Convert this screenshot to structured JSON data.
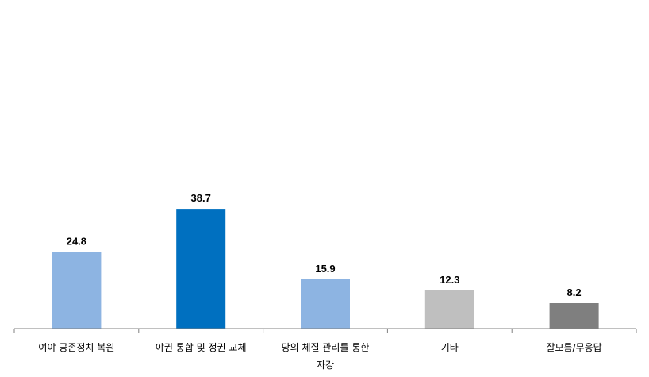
{
  "chart_data": {
    "type": "bar",
    "categories": [
      [
        "여야 공존정치 복원"
      ],
      [
        "야권 통합 및 정권 교체"
      ],
      [
        "당의 체질 관리를 통한",
        "자강"
      ],
      [
        "기타"
      ],
      [
        "잘모름/무응답"
      ]
    ],
    "values": [
      24.8,
      38.7,
      15.9,
      12.3,
      8.2
    ],
    "value_labels": [
      "24.8",
      "38.7",
      "15.9",
      "12.3",
      "8.2"
    ],
    "colors": [
      "#8DB4E2",
      "#0070C0",
      "#8DB4E2",
      "#BFBFBF",
      "#7F7F7F"
    ],
    "title": "",
    "xlabel": "",
    "ylabel": "",
    "ylim": [
      0,
      100
    ],
    "grid": false,
    "legend": "none"
  }
}
